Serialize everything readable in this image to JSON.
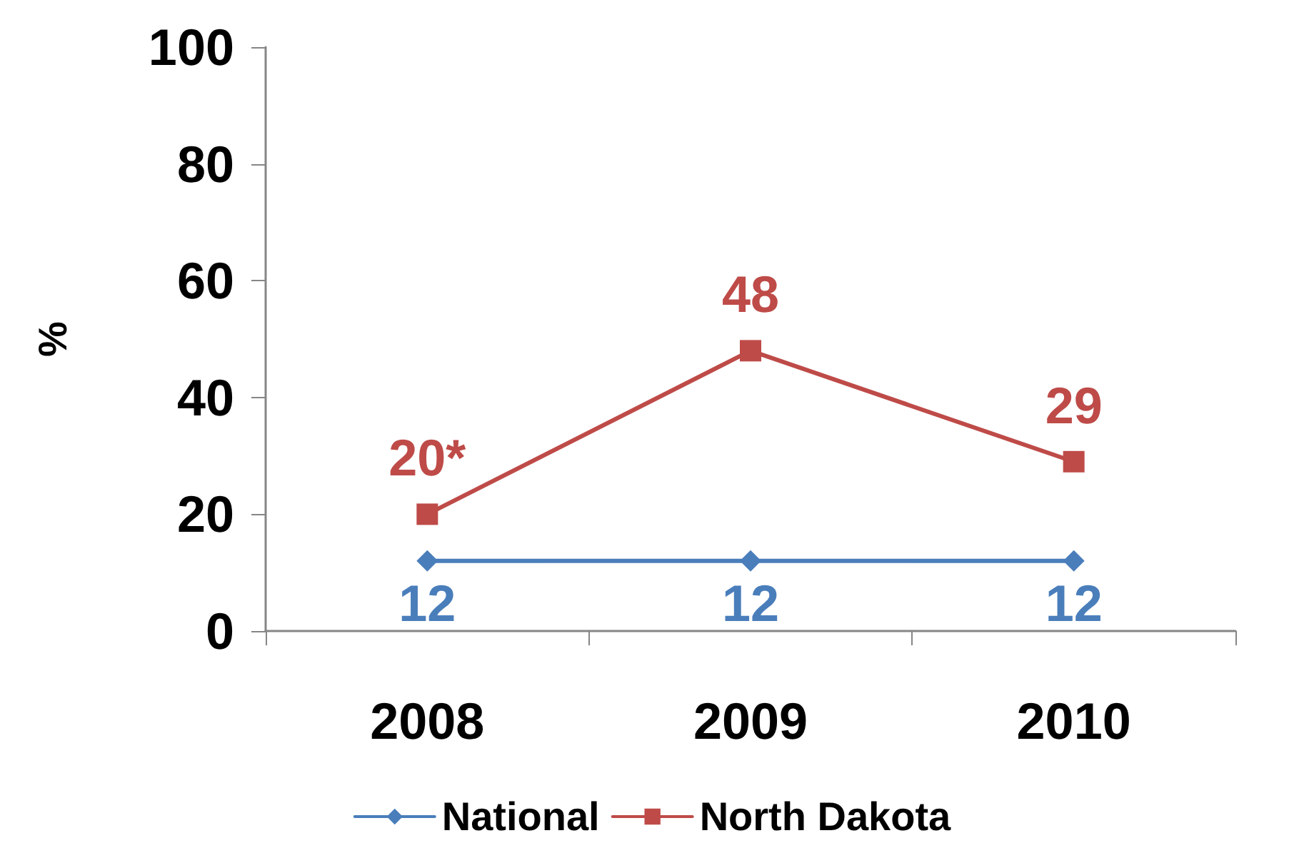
{
  "chart_data": {
    "type": "line",
    "ylabel": "%",
    "categories": [
      "2008",
      "2009",
      "2010"
    ],
    "series": [
      {
        "name": "National",
        "color": "#4a7ebb",
        "marker": "diamond",
        "values": [
          12,
          12,
          12
        ],
        "value_labels": [
          "12",
          "12",
          "12"
        ]
      },
      {
        "name": "North Dakota",
        "color": "#be4b48",
        "marker": "square",
        "values": [
          20,
          48,
          29
        ],
        "value_labels": [
          "20*",
          "48",
          "29"
        ]
      }
    ],
    "ylim": [
      0,
      100
    ],
    "yticks": [
      0,
      20,
      40,
      60,
      80,
      100
    ],
    "grid": false,
    "legend": "bottom",
    "line_style": "solid"
  }
}
